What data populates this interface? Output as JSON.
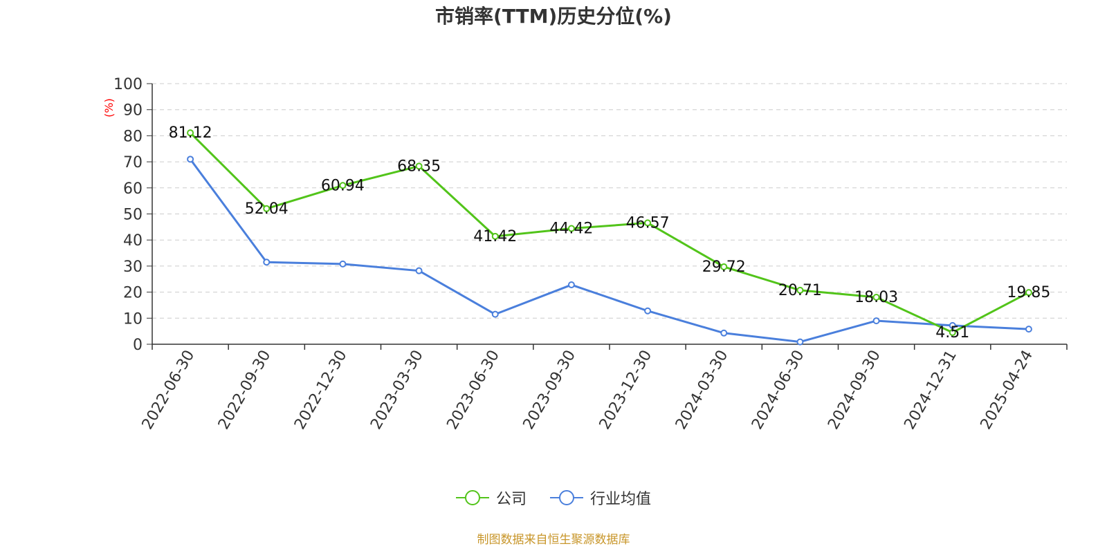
{
  "title": "市销率(TTM)历史分位(%)",
  "source": "制图数据来自恒生聚源数据库",
  "colors": {
    "company": "#52c41a",
    "industry": "#4a7fdc",
    "axis": "#333333",
    "grid": "#cccccc",
    "ylabel": "#ff0000",
    "source": "#c8962a"
  },
  "chart_data": {
    "type": "line",
    "title": "市销率(TTM)历史分位(%)",
    "ylabel": "(%)",
    "xlabel": "",
    "ylim": [
      0,
      100
    ],
    "yticks": [
      "0",
      "10",
      "20",
      "30",
      "40",
      "50",
      "60",
      "70",
      "80",
      "90",
      "100"
    ],
    "grid": true,
    "legend_position": "bottom",
    "categories": [
      "2022-06-30",
      "2022-09-30",
      "2022-12-30",
      "2023-03-30",
      "2023-06-30",
      "2023-09-30",
      "2023-12-30",
      "2024-03-30",
      "2024-06-30",
      "2024-09-30",
      "2024-12-31",
      "2025-04-24"
    ],
    "series": [
      {
        "name": "公司",
        "color": "#52c41a",
        "values": [
          81.12,
          52.04,
          60.94,
          68.35,
          41.42,
          44.42,
          46.57,
          29.72,
          20.71,
          18.03,
          4.51,
          19.85
        ],
        "labels": [
          "81.12",
          "52.04",
          "60.94",
          "68.35",
          "41.42",
          "44.42",
          "46.57",
          "29.72",
          "20.71",
          "18.03",
          "4.51",
          "19.85"
        ]
      },
      {
        "name": "行业均值",
        "color": "#4a7fdc",
        "values": [
          71.0,
          31.5,
          30.8,
          28.2,
          11.5,
          22.8,
          12.8,
          4.3,
          0.9,
          9.0,
          7.2,
          5.8
        ]
      }
    ]
  }
}
